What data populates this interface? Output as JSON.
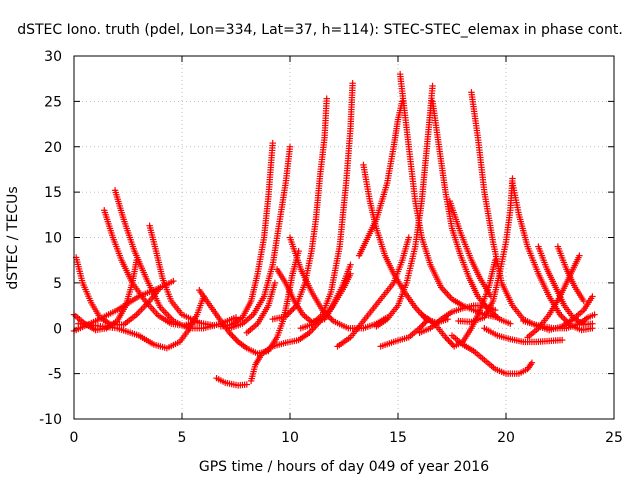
{
  "chart_data": {
    "type": "scatter",
    "title": "dSTEC Iono. truth (pdel, Lon=334, Lat=37, h=114): STEC-STEC_elemax in phase cont.",
    "xlabel": "GPS time / hours of day 049 of year 2016",
    "ylabel": "dSTEC  / TECUs",
    "xlim": [
      0,
      25
    ],
    "ylim": [
      -10,
      30
    ],
    "xticks": [
      0,
      5,
      10,
      15,
      20,
      25
    ],
    "yticks": [
      -10,
      -5,
      0,
      5,
      10,
      15,
      20,
      25,
      30
    ],
    "grid": true,
    "marker": "plus",
    "color": "#ff0000",
    "series": [
      {
        "points": [
          [
            0.1,
            7.8
          ],
          [
            0.4,
            5.0
          ],
          [
            0.8,
            2.8
          ],
          [
            1.2,
            1.2
          ],
          [
            1.7,
            0.4
          ],
          [
            2.3,
            0.4
          ],
          [
            2.9,
            1.5
          ],
          [
            3.5,
            3.0
          ],
          [
            4.0,
            4.5
          ]
        ]
      },
      {
        "points": [
          [
            0.0,
            1.5
          ],
          [
            0.5,
            0.5
          ],
          [
            1.0,
            -0.2
          ],
          [
            1.5,
            0.0
          ],
          [
            2.0,
            0.8
          ],
          [
            2.4,
            2.5
          ],
          [
            2.7,
            5.0
          ],
          [
            2.9,
            7.5
          ]
        ]
      },
      {
        "points": [
          [
            1.4,
            13.0
          ],
          [
            1.8,
            10.0
          ],
          [
            2.2,
            7.5
          ],
          [
            2.7,
            5.0
          ],
          [
            3.3,
            3.0
          ],
          [
            3.9,
            1.4
          ],
          [
            4.5,
            0.5
          ],
          [
            5.1,
            0.3
          ],
          [
            5.7,
            0.8
          ]
        ]
      },
      {
        "points": [
          [
            1.9,
            15.2
          ],
          [
            2.3,
            12.0
          ],
          [
            2.8,
            8.5
          ],
          [
            3.4,
            5.2
          ],
          [
            4.0,
            2.3
          ],
          [
            4.6,
            0.8
          ],
          [
            5.3,
            0.0
          ],
          [
            6.0,
            0.0
          ],
          [
            6.8,
            0.5
          ],
          [
            7.5,
            1.2
          ]
        ]
      },
      {
        "points": [
          [
            3.5,
            11.3
          ],
          [
            3.8,
            8.5
          ],
          [
            4.1,
            5.5
          ],
          [
            4.5,
            3.0
          ],
          [
            5.0,
            1.5
          ],
          [
            5.8,
            0.6
          ],
          [
            6.5,
            0.3
          ]
        ]
      },
      {
        "points": [
          [
            0.2,
            0.5
          ],
          [
            1.0,
            0.3
          ],
          [
            2.0,
            0.0
          ],
          [
            3.0,
            -0.8
          ],
          [
            3.7,
            -1.8
          ],
          [
            4.3,
            -2.2
          ],
          [
            4.9,
            -1.5
          ],
          [
            5.3,
            -0.2
          ],
          [
            5.7,
            1.5
          ],
          [
            6.0,
            3.5
          ]
        ]
      },
      {
        "points": [
          [
            0.0,
            -0.3
          ],
          [
            1.0,
            0.8
          ],
          [
            2.0,
            2.0
          ],
          [
            3.0,
            3.5
          ],
          [
            4.0,
            4.5
          ],
          [
            4.6,
            5.2
          ]
        ]
      },
      {
        "points": [
          [
            5.8,
            4.2
          ],
          [
            6.3,
            2.5
          ],
          [
            6.8,
            0.8
          ],
          [
            7.2,
            -0.5
          ],
          [
            7.6,
            -1.5
          ],
          [
            8.0,
            -2.2
          ],
          [
            8.5,
            -2.8
          ],
          [
            9.0,
            -2.5
          ],
          [
            9.4,
            -1.0
          ],
          [
            9.7,
            1.0
          ],
          [
            9.9,
            3.2
          ],
          [
            10.1,
            5.8
          ],
          [
            10.4,
            8.5
          ]
        ]
      },
      {
        "points": [
          [
            6.6,
            -5.5
          ],
          [
            7.0,
            -6.0
          ],
          [
            7.6,
            -6.3
          ],
          [
            8.0,
            -6.2
          ]
        ]
      },
      {
        "points": [
          [
            8.2,
            -5.8
          ],
          [
            8.4,
            -4.0
          ],
          [
            8.7,
            -2.8
          ],
          [
            9.2,
            -2.0
          ],
          [
            9.8,
            -1.6
          ],
          [
            10.4,
            -1.3
          ],
          [
            10.9,
            -0.5
          ],
          [
            11.4,
            0.8
          ],
          [
            11.9,
            2.2
          ],
          [
            12.4,
            4.5
          ],
          [
            12.8,
            7.0
          ]
        ]
      },
      {
        "points": [
          [
            6.8,
            0.2
          ],
          [
            7.3,
            0.4
          ],
          [
            7.8,
            1.2
          ],
          [
            8.2,
            3.0
          ],
          [
            8.5,
            6.0
          ],
          [
            8.8,
            10.0
          ],
          [
            9.0,
            14.5
          ],
          [
            9.2,
            20.4
          ]
        ]
      },
      {
        "points": [
          [
            7.2,
            0.0
          ],
          [
            7.8,
            0.5
          ],
          [
            8.3,
            1.5
          ],
          [
            8.8,
            3.5
          ],
          [
            9.2,
            7.0
          ],
          [
            9.5,
            11.5
          ],
          [
            9.8,
            16.0
          ],
          [
            10.0,
            20.0
          ]
        ]
      },
      {
        "points": [
          [
            8.0,
            -0.5
          ],
          [
            8.5,
            0.5
          ],
          [
            9.0,
            2.5
          ],
          [
            9.3,
            5.0
          ]
        ]
      },
      {
        "points": [
          [
            9.4,
            6.5
          ],
          [
            9.8,
            5.0
          ],
          [
            10.2,
            3.0
          ],
          [
            10.6,
            1.5
          ],
          [
            11.0,
            0.7
          ],
          [
            11.6,
            1.0
          ],
          [
            12.0,
            2.5
          ],
          [
            12.5,
            4.5
          ],
          [
            12.8,
            6.0
          ]
        ]
      },
      {
        "points": [
          [
            10.0,
            10.0
          ],
          [
            10.5,
            6.5
          ],
          [
            11.0,
            4.0
          ],
          [
            11.5,
            2.0
          ],
          [
            12.0,
            0.8
          ],
          [
            12.7,
            0.0
          ],
          [
            13.4,
            0.0
          ],
          [
            14.0,
            0.5
          ],
          [
            14.5,
            1.2
          ]
        ]
      },
      {
        "points": [
          [
            9.2,
            1.0
          ],
          [
            9.8,
            1.3
          ],
          [
            10.3,
            2.5
          ],
          [
            10.7,
            5.0
          ],
          [
            11.0,
            8.5
          ],
          [
            11.2,
            12.0
          ],
          [
            11.4,
            17.0
          ],
          [
            11.6,
            21.0
          ],
          [
            11.7,
            25.3
          ]
        ]
      },
      {
        "points": [
          [
            10.5,
            0.0
          ],
          [
            11.0,
            0.4
          ],
          [
            11.5,
            1.5
          ],
          [
            11.9,
            4.0
          ],
          [
            12.3,
            9.0
          ],
          [
            12.6,
            16.0
          ],
          [
            12.8,
            22.0
          ],
          [
            12.9,
            27.0
          ]
        ]
      },
      {
        "points": [
          [
            12.2,
            -2.0
          ],
          [
            12.8,
            -1.0
          ],
          [
            13.3,
            0.5
          ],
          [
            13.8,
            2.0
          ],
          [
            14.3,
            3.5
          ],
          [
            14.8,
            5.0
          ],
          [
            15.2,
            7.5
          ],
          [
            15.5,
            10.0
          ]
        ]
      },
      {
        "points": [
          [
            13.4,
            18.0
          ],
          [
            13.7,
            14.0
          ],
          [
            14.0,
            11.0
          ],
          [
            14.4,
            8.0
          ],
          [
            14.8,
            6.0
          ],
          [
            15.3,
            4.0
          ],
          [
            15.8,
            2.3
          ],
          [
            16.3,
            1.0
          ],
          [
            16.8,
            0.6
          ],
          [
            17.3,
            1.0
          ]
        ]
      },
      {
        "points": [
          [
            13.2,
            8.0
          ],
          [
            13.6,
            10.0
          ],
          [
            14.0,
            12.0
          ],
          [
            14.5,
            16.0
          ],
          [
            14.8,
            20.0
          ],
          [
            15.0,
            23.0
          ],
          [
            15.2,
            25.0
          ]
        ]
      },
      {
        "points": [
          [
            15.1,
            28.0
          ],
          [
            15.3,
            24.0
          ],
          [
            15.5,
            20.0
          ],
          [
            15.8,
            14.0
          ],
          [
            16.1,
            10.0
          ],
          [
            16.5,
            7.0
          ],
          [
            17.0,
            4.5
          ],
          [
            17.5,
            3.2
          ],
          [
            18.0,
            2.5
          ],
          [
            18.5,
            2.0
          ],
          [
            19.0,
            1.5
          ],
          [
            19.6,
            1.2
          ]
        ]
      },
      {
        "points": [
          [
            14.0,
            0.2
          ],
          [
            14.5,
            1.0
          ],
          [
            15.0,
            2.5
          ],
          [
            15.4,
            5.0
          ],
          [
            15.8,
            9.0
          ],
          [
            16.1,
            14.0
          ],
          [
            16.3,
            19.0
          ],
          [
            16.5,
            24.0
          ],
          [
            16.6,
            26.7
          ]
        ]
      },
      {
        "points": [
          [
            16.6,
            25.0
          ],
          [
            16.9,
            20.0
          ],
          [
            17.2,
            15.0
          ],
          [
            17.5,
            11.0
          ],
          [
            17.9,
            8.0
          ],
          [
            18.3,
            5.5
          ],
          [
            18.7,
            3.5
          ],
          [
            19.2,
            2.0
          ],
          [
            19.7,
            1.0
          ],
          [
            20.2,
            0.5
          ]
        ]
      },
      {
        "points": [
          [
            14.2,
            -2.0
          ],
          [
            14.8,
            -1.5
          ],
          [
            15.5,
            -1.0
          ],
          [
            16.0,
            0.0
          ],
          [
            16.4,
            1.0
          ]
        ]
      },
      {
        "points": [
          [
            16.1,
            1.5
          ],
          [
            16.7,
            0.5
          ],
          [
            17.2,
            -1.0
          ],
          [
            17.6,
            -2.0
          ],
          [
            18.0,
            -1.5
          ],
          [
            18.4,
            0.0
          ],
          [
            18.8,
            2.0
          ],
          [
            19.2,
            4.5
          ],
          [
            19.5,
            7.5
          ]
        ]
      },
      {
        "points": [
          [
            16.0,
            -0.5
          ],
          [
            16.5,
            0.0
          ],
          [
            17.0,
            1.0
          ],
          [
            17.5,
            1.8
          ],
          [
            18.0,
            2.2
          ],
          [
            18.5,
            2.5
          ],
          [
            19.0,
            2.5
          ],
          [
            19.5,
            2.0
          ]
        ]
      },
      {
        "points": [
          [
            17.4,
            14.0
          ],
          [
            17.9,
            10.5
          ],
          [
            18.4,
            7.5
          ],
          [
            18.8,
            5.5
          ],
          [
            19.3,
            3.5
          ]
        ]
      },
      {
        "points": [
          [
            18.4,
            26.0
          ],
          [
            18.7,
            21.0
          ],
          [
            19.0,
            15.0
          ],
          [
            19.4,
            9.5
          ],
          [
            19.8,
            5.0
          ],
          [
            20.3,
            2.5
          ],
          [
            20.8,
            1.0
          ],
          [
            21.4,
            0.3
          ],
          [
            22.0,
            -0.2
          ],
          [
            22.6,
            0.2
          ],
          [
            23.1,
            1.0
          ],
          [
            23.6,
            2.0
          ],
          [
            24.0,
            3.5
          ]
        ]
      },
      {
        "points": [
          [
            17.5,
            -0.8
          ],
          [
            18.0,
            -1.8
          ],
          [
            18.5,
            -2.5
          ],
          [
            19.0,
            -3.5
          ],
          [
            19.5,
            -4.5
          ],
          [
            20.0,
            -5.0
          ],
          [
            20.6,
            -5.0
          ],
          [
            21.0,
            -4.5
          ],
          [
            21.2,
            -3.8
          ]
        ]
      },
      {
        "points": [
          [
            17.8,
            0.8
          ],
          [
            18.4,
            0.7
          ],
          [
            19.0,
            1.2
          ],
          [
            19.4,
            3.0
          ],
          [
            19.7,
            6.0
          ],
          [
            20.0,
            9.5
          ],
          [
            20.2,
            13.0
          ],
          [
            20.3,
            16.5
          ]
        ]
      },
      {
        "points": [
          [
            20.3,
            16.0
          ],
          [
            20.6,
            12.5
          ],
          [
            21.0,
            9.0
          ],
          [
            21.5,
            6.0
          ],
          [
            22.0,
            3.5
          ],
          [
            22.5,
            1.5
          ],
          [
            23.0,
            0.3
          ],
          [
            23.5,
            -0.2
          ],
          [
            24.0,
            0.0
          ]
        ]
      },
      {
        "points": [
          [
            19.0,
            0.0
          ],
          [
            19.6,
            -0.8
          ],
          [
            20.2,
            -1.2
          ],
          [
            20.8,
            -1.5
          ],
          [
            21.4,
            -1.5
          ],
          [
            22.0,
            -1.4
          ],
          [
            22.6,
            -1.3
          ]
        ]
      },
      {
        "points": [
          [
            21.5,
            9.0
          ],
          [
            21.9,
            6.5
          ],
          [
            22.3,
            4.5
          ],
          [
            22.7,
            2.5
          ],
          [
            23.1,
            1.2
          ],
          [
            23.6,
            0.4
          ],
          [
            24.0,
            0.5
          ]
        ]
      },
      {
        "points": [
          [
            22.4,
            9.0
          ],
          [
            22.8,
            6.5
          ],
          [
            23.2,
            4.5
          ],
          [
            23.6,
            3.0
          ]
        ]
      },
      {
        "points": [
          [
            20.8,
            0.8
          ],
          [
            21.5,
            0.3
          ],
          [
            22.2,
            0.0
          ],
          [
            22.8,
            0.0
          ],
          [
            23.4,
            0.5
          ],
          [
            23.8,
            1.2
          ],
          [
            24.1,
            1.5
          ]
        ]
      },
      {
        "points": [
          [
            21.0,
            -1.0
          ],
          [
            21.5,
            0.0
          ],
          [
            22.0,
            1.5
          ],
          [
            22.5,
            3.5
          ],
          [
            23.0,
            6.0
          ],
          [
            23.4,
            8.0
          ]
        ]
      }
    ]
  }
}
